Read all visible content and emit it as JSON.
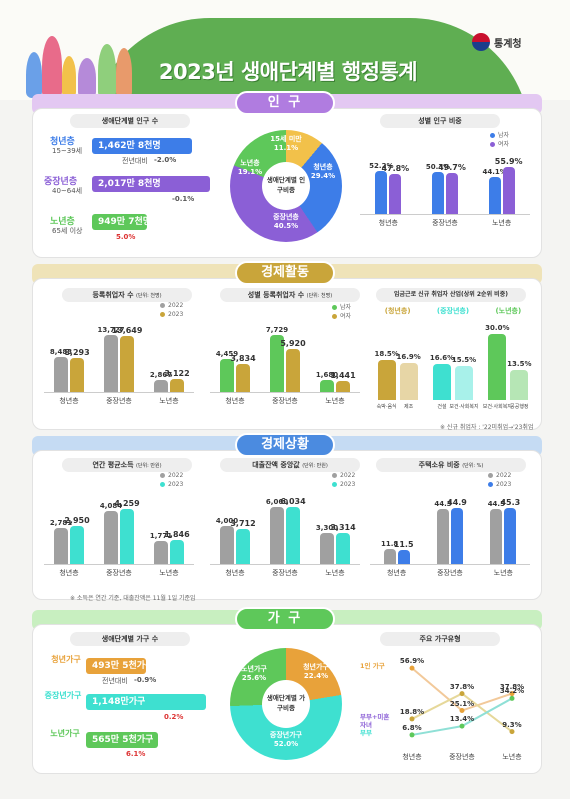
{
  "header": {
    "title": "2023년 생애단계별 행정통계",
    "logo": "통계청"
  },
  "population": {
    "section": "인 구",
    "box1_title": "생애단계별 인구 수",
    "young": {
      "name": "청년층",
      "range": "15~39세",
      "value": "1,462만 8천명",
      "change_label": "전년대비",
      "change": "-2.0%"
    },
    "middle": {
      "name": "중장년층",
      "range": "40~64세",
      "value": "2,017만 8천명",
      "change": "-0.1%"
    },
    "old": {
      "name": "노년층",
      "range": "65세 이상",
      "value": "949만 7천명",
      "change": "5.0%"
    },
    "donut": {
      "center": "생애단계별 인구비중",
      "slices": [
        {
          "label": "15세 미만",
          "value": "11.1%"
        },
        {
          "label": "청년층",
          "value": "29.4%"
        },
        {
          "label": "중장년층",
          "value": "40.5%"
        },
        {
          "label": "노년층",
          "value": "19.1%"
        }
      ]
    },
    "box3_title": "성별 인구 비중",
    "legend": [
      "남자",
      "여자"
    ],
    "categories": [
      "청년층",
      "중장년층",
      "노년층"
    ],
    "male": [
      "52.2%",
      "50.3%",
      "44.1%"
    ],
    "female": [
      "47.8%",
      "49.7%",
      "55.9%"
    ]
  },
  "economy": {
    "section": "경제활동",
    "box1_title": "등록취업자 수",
    "unit1": "(단위: 천명)",
    "legend": [
      "2022",
      "2023"
    ],
    "categories": [
      "청년층",
      "중장년층",
      "노년층"
    ],
    "emp2022": [
      "8,483",
      "13,727",
      "2,867"
    ],
    "emp2023": [
      "8,293",
      "13,649",
      "3,122"
    ],
    "box2_title": "성별 등록취업자 수",
    "unit2": "(단위: 천명)",
    "legend2": [
      "남자",
      "여자"
    ],
    "male": [
      "4,459",
      "7,729",
      "1,680"
    ],
    "female": [
      "3,834",
      "5,920",
      "1,441"
    ],
    "box3_title": "임금근로 신규 취업자 산업(상위 2순위 비중)",
    "groups": [
      "(청년층)",
      "(중장년층)",
      "(노년층)"
    ],
    "industries": [
      {
        "label": "숙박·음식",
        "value": "18.5%"
      },
      {
        "label": "제조",
        "value": "16.9%"
      },
      {
        "label": "건설",
        "value": "16.6%"
      },
      {
        "label": "보건·사회복지",
        "value": "15.5%"
      },
      {
        "label": "보건·사회복지",
        "value": "30.0%"
      },
      {
        "label": "공공행정",
        "value": "13.5%"
      }
    ],
    "note": "※ 신규 취업자 : '22미취업→'23취업"
  },
  "status": {
    "section": "경제상황",
    "box1_title": "연간 평균소득",
    "unit1": "(단위: 만원)",
    "legend": [
      "2022",
      "2023"
    ],
    "categories": [
      "청년층",
      "중장년층",
      "노년층"
    ],
    "inc2022": [
      "2,781",
      "4,084",
      "1,771"
    ],
    "inc2023": [
      "2,950",
      "4,259",
      "1,846"
    ],
    "box2_title": "대출잔액 중앙값",
    "unit2": "(단위: 만원)",
    "loan2022": [
      "4,000",
      "6,060",
      "3,300"
    ],
    "loan2023": [
      "3,712",
      "6,034",
      "3,314"
    ],
    "box3_title": "주택소유 비중",
    "unit3": "(단위: %)",
    "home2022": [
      "11.8",
      "44.3",
      "44.5"
    ],
    "home2023": [
      "11.5",
      "44.9",
      "45.3"
    ],
    "note": "※ 소득은 연간 기준, 대출잔액은 11월 1일 기준임"
  },
  "household": {
    "section": "가 구",
    "box1_title": "생애단계별 가구 수",
    "young": {
      "name": "청년가구",
      "value": "493만 5천가구",
      "change_label": "전년대비",
      "change": "-0.9%"
    },
    "middle": {
      "name": "중장년가구",
      "value": "1,148만가구",
      "change": "0.2%"
    },
    "old": {
      "name": "노년가구",
      "value": "565만 5천가구",
      "change": "6.1%"
    },
    "donut": {
      "center": "생애단계별 가구비중",
      "slices": [
        {
          "label": "청년가구",
          "value": "22.4%"
        },
        {
          "label": "중장년가구",
          "value": "52.0%"
        },
        {
          "label": "노년가구",
          "value": "25.6%"
        }
      ]
    },
    "box3_title": "주요 가구유형",
    "types": [
      "1인 가구",
      "부부+미혼자녀",
      "부부"
    ],
    "categories": [
      "청년층",
      "중장년층",
      "노년층"
    ],
    "single": [
      "56.9%",
      "25.1%",
      "37.8%"
    ],
    "couple_kids": [
      "18.8%",
      "37.8%",
      "9.3%"
    ],
    "couple": [
      "6.8%",
      "13.4%",
      "34.2%"
    ]
  },
  "colors": {
    "young": "#3d7de8",
    "middle": "#8b5fd6",
    "old": "#5ec85a",
    "gold": "#c9a53a",
    "gray": "#a0a0a0",
    "teal": "#3ee0d0",
    "orange": "#e8a23a"
  },
  "chart_data": [
    {
      "type": "bar",
      "title": "성별 인구 비중",
      "categories": [
        "청년층",
        "중장년층",
        "노년층"
      ],
      "series": [
        {
          "name": "남자",
          "values": [
            52.2,
            50.3,
            44.1
          ]
        },
        {
          "name": "여자",
          "values": [
            47.8,
            49.7,
            55.9
          ]
        }
      ]
    },
    {
      "type": "bar",
      "title": "등록취업자 수",
      "categories": [
        "청년층",
        "중장년층",
        "노년층"
      ],
      "series": [
        {
          "name": "2022",
          "values": [
            8483,
            13727,
            2867
          ]
        },
        {
          "name": "2023",
          "values": [
            8293,
            13649,
            3122
          ]
        }
      ]
    },
    {
      "type": "bar",
      "title": "성별 등록취업자 수",
      "categories": [
        "청년층",
        "중장년층",
        "노년층"
      ],
      "series": [
        {
          "name": "남자",
          "values": [
            4459,
            7729,
            1680
          ]
        },
        {
          "name": "여자",
          "values": [
            3834,
            5920,
            1441
          ]
        }
      ]
    },
    {
      "type": "bar",
      "title": "연간 평균소득",
      "categories": [
        "청년층",
        "중장년층",
        "노년층"
      ],
      "series": [
        {
          "name": "2022",
          "values": [
            2781,
            4084,
            1771
          ]
        },
        {
          "name": "2023",
          "values": [
            2950,
            4259,
            1846
          ]
        }
      ]
    },
    {
      "type": "bar",
      "title": "대출잔액 중앙값",
      "categories": [
        "청년층",
        "중장년층",
        "노년층"
      ],
      "series": [
        {
          "name": "2022",
          "values": [
            4000,
            6060,
            3300
          ]
        },
        {
          "name": "2023",
          "values": [
            3712,
            6034,
            3314
          ]
        }
      ]
    },
    {
      "type": "bar",
      "title": "주택소유 비중",
      "categories": [
        "청년층",
        "중장년층",
        "노년층"
      ],
      "series": [
        {
          "name": "2022",
          "values": [
            11.8,
            44.3,
            44.5
          ]
        },
        {
          "name": "2023",
          "values": [
            11.5,
            44.9,
            45.3
          ]
        }
      ]
    },
    {
      "type": "line",
      "title": "주요 가구유형",
      "categories": [
        "청년층",
        "중장년층",
        "노년층"
      ],
      "series": [
        {
          "name": "1인 가구",
          "values": [
            56.9,
            25.1,
            37.8
          ]
        },
        {
          "name": "부부+미혼자녀",
          "values": [
            18.8,
            37.8,
            9.3
          ]
        },
        {
          "name": "부부",
          "values": [
            6.8,
            13.4,
            34.2
          ]
        }
      ]
    }
  ]
}
